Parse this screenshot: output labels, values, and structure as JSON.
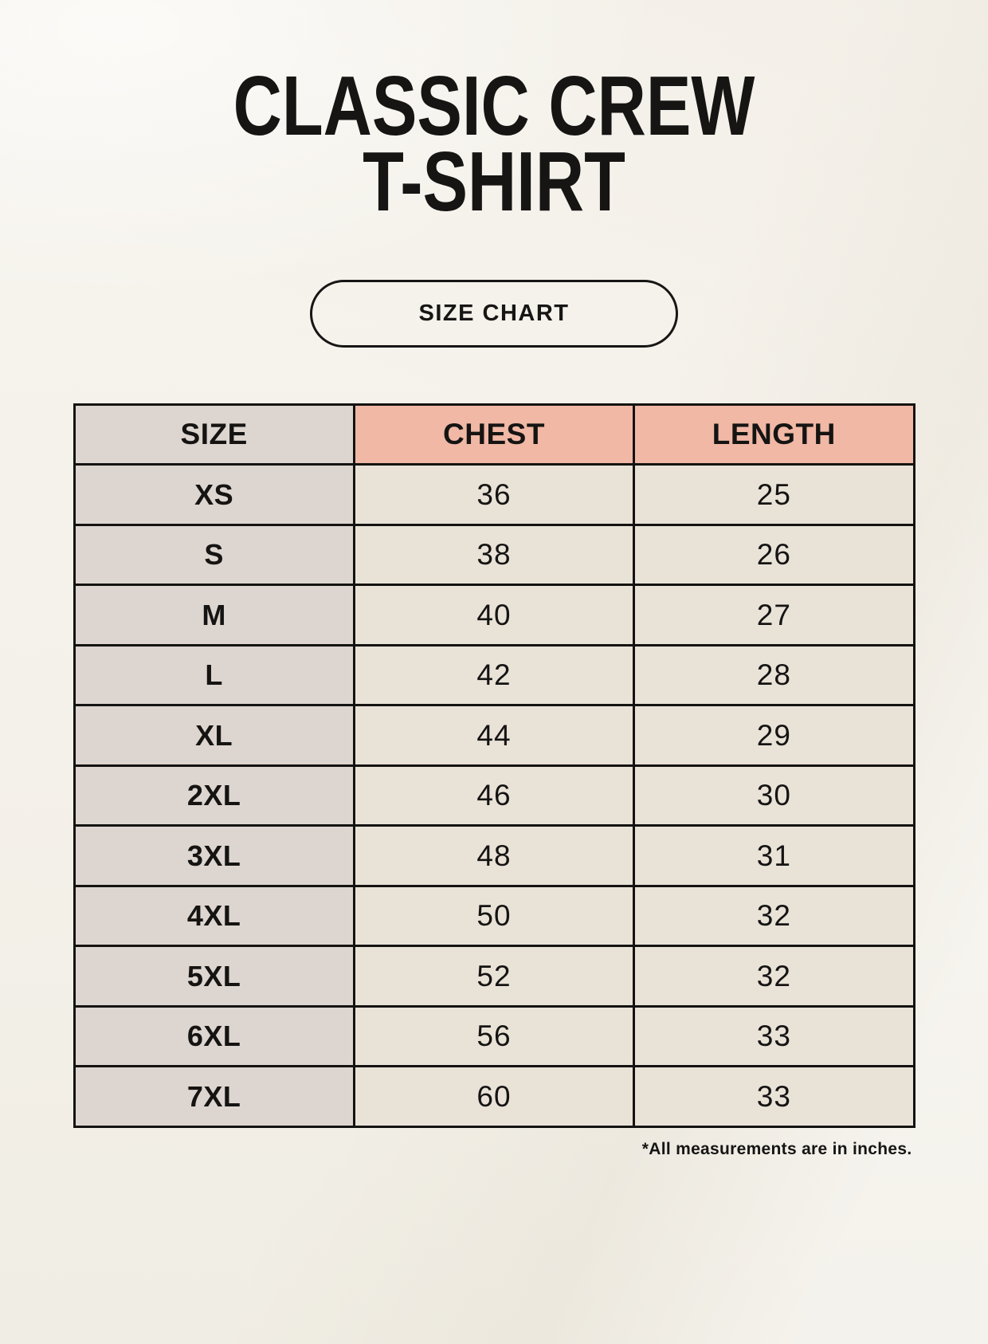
{
  "header": {
    "title_line1": "CLASSIC CREW",
    "title_line2": "T-SHIRT",
    "button_label": "SIZE CHART"
  },
  "footnote": "*All measurements are in inches.",
  "chart_data": {
    "type": "table",
    "title": "CLASSIC CREW T-SHIRT",
    "columns": [
      "SIZE",
      "CHEST",
      "LENGTH"
    ],
    "rows": [
      [
        "XS",
        "36",
        "25"
      ],
      [
        "S",
        "38",
        "26"
      ],
      [
        "M",
        "40",
        "27"
      ],
      [
        "L",
        "42",
        "28"
      ],
      [
        "XL",
        "44",
        "29"
      ],
      [
        "2XL",
        "46",
        "30"
      ],
      [
        "3XL",
        "48",
        "31"
      ],
      [
        "4XL",
        "50",
        "32"
      ],
      [
        "5XL",
        "52",
        "32"
      ],
      [
        "6XL",
        "56",
        "33"
      ],
      [
        "7XL",
        "60",
        "33"
      ]
    ],
    "units": "inches"
  },
  "colors": {
    "page_background": "#f5f2eb",
    "size_column": "#ddd5cf",
    "header_accent": "#f0b8a5",
    "cell_cream": "#e9e2d7",
    "border": "#141311",
    "text": "#151413"
  }
}
